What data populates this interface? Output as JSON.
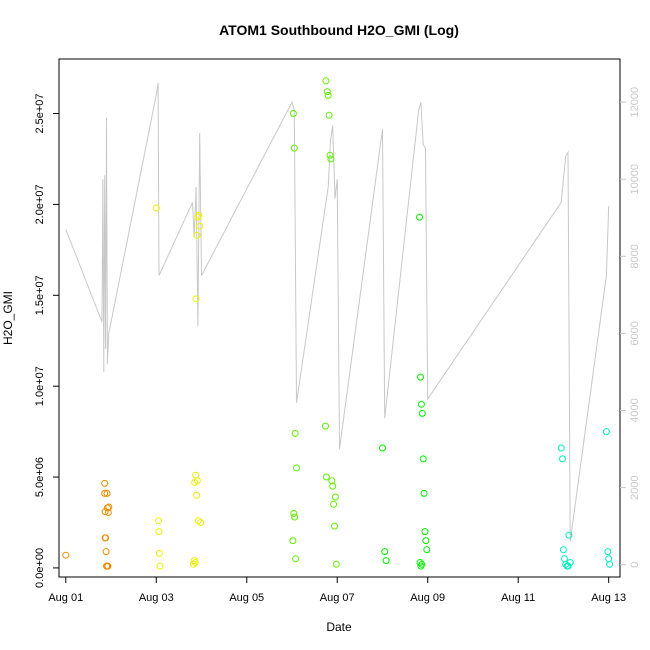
{
  "chart_data": {
    "type": "scatter",
    "title": "ATOM1 Southbound H2O_GMI (Log)",
    "xlabel": "Date",
    "ylabel": "H2O_GMI",
    "x_ticks": [
      "Aug 01",
      "Aug 03",
      "Aug 05",
      "Aug 07",
      "Aug 09",
      "Aug 11",
      "Aug 13"
    ],
    "y_ticks": [
      "0.0e+00",
      "5.0e+06",
      "1.0e+07",
      "1.5e+07",
      "2.0e+07",
      "2.5e+07"
    ],
    "y_tick_values": [
      0,
      5000000,
      10000000,
      15000000,
      20000000,
      25000000
    ],
    "y2_ticks": [
      "0",
      "2000",
      "4000",
      "6000",
      "8000",
      "10000",
      "12000"
    ],
    "y2_tick_values": [
      0,
      2000,
      4000,
      6000,
      8000,
      10000,
      12000
    ],
    "xlim_days": [
      0.85,
      13.25
    ],
    "ylim": [
      -500000,
      28000000
    ],
    "y2lim": [
      -320,
      13120
    ],
    "grid": false,
    "line_color": "#c8c8c8",
    "point_groups": [
      {
        "color": "#f08c00",
        "x": [
          1.0,
          1.86,
          1.87,
          1.88,
          1.89,
          1.9,
          1.91,
          1.93,
          1.94,
          1.95,
          1.86,
          1.87,
          1.91,
          1.92
        ],
        "y": [
          700000,
          4650000,
          1650000,
          1650000,
          900000,
          100000,
          100000,
          100000,
          3050000,
          3350000,
          4100000,
          3100000,
          4100000,
          3300000
        ]
      },
      {
        "color": "#f0f000",
        "x": [
          3.0,
          3.05,
          3.06,
          3.07,
          3.08,
          3.82,
          3.84,
          3.86,
          3.88,
          3.9,
          3.92,
          3.94,
          3.96,
          3.98,
          3.85,
          3.87,
          3.89,
          3.91,
          3.93
        ],
        "y": [
          19800000,
          2600000,
          2000000,
          800000,
          100000,
          200000,
          400000,
          300000,
          14800000,
          18300000,
          19300000,
          19400000,
          18800000,
          2500000,
          4700000,
          5100000,
          4000000,
          4800000,
          2600000
        ]
      },
      {
        "color": "#60f000",
        "x": [
          6.03,
          6.05,
          6.07,
          6.1,
          6.75,
          6.78,
          6.8,
          6.82,
          6.84,
          6.86,
          6.88,
          6.9,
          6.92,
          6.94,
          6.96,
          6.98,
          6.02,
          6.04,
          6.06,
          6.08,
          6.74,
          6.76
        ],
        "y": [
          25000000,
          23100000,
          7400000,
          5500000,
          26800000,
          26200000,
          26000000,
          24900000,
          22700000,
          22500000,
          4800000,
          4500000,
          3500000,
          2300000,
          3900000,
          200000,
          1500000,
          3000000,
          2800000,
          500000,
          7800000,
          5000000
        ]
      },
      {
        "color": "#00f000",
        "x": [
          8.0,
          8.05,
          8.08,
          8.82,
          8.84,
          8.86,
          8.88,
          8.9,
          8.92,
          8.94,
          8.96,
          8.98,
          8.83,
          8.85,
          8.87
        ],
        "y": [
          6600000,
          900000,
          400000,
          19300000,
          10500000,
          9000000,
          8500000,
          6000000,
          4100000,
          2000000,
          1500000,
          1000000,
          300000,
          100000,
          200000
        ]
      },
      {
        "color": "#00f0c0",
        "x": [
          11.95,
          11.98,
          12.0,
          12.02,
          12.05,
          12.08,
          12.1,
          12.12,
          12.15,
          12.95,
          12.98,
          13.0,
          13.02
        ],
        "y": [
          6600000,
          6000000,
          1000000,
          500000,
          200000,
          100000,
          100000,
          1800000,
          300000,
          7500000,
          900000,
          500000,
          200000
        ]
      }
    ],
    "line_y2": [
      [
        1.0,
        8700
      ],
      [
        1.8,
        6300
      ],
      [
        1.82,
        10000
      ],
      [
        1.84,
        5000
      ],
      [
        1.86,
        10100
      ],
      [
        1.88,
        5600
      ],
      [
        1.9,
        11600
      ],
      [
        1.92,
        5200
      ],
      [
        1.95,
        6000
      ],
      [
        3.0,
        12200
      ],
      [
        3.04,
        12500
      ],
      [
        3.06,
        7500
      ],
      [
        3.8,
        9400
      ],
      [
        3.84,
        8500
      ],
      [
        3.88,
        9800
      ],
      [
        3.92,
        6200
      ],
      [
        3.96,
        11200
      ],
      [
        4.0,
        7500
      ],
      [
        6.0,
        12000
      ],
      [
        6.05,
        11800
      ],
      [
        6.1,
        4200
      ],
      [
        6.8,
        9800
      ],
      [
        6.85,
        11000
      ],
      [
        6.9,
        11400
      ],
      [
        6.95,
        9500
      ],
      [
        7.0,
        10000
      ],
      [
        7.05,
        3000
      ],
      [
        8.0,
        11300
      ],
      [
        8.05,
        3800
      ],
      [
        8.8,
        11800
      ],
      [
        8.85,
        12000
      ],
      [
        8.9,
        10900
      ],
      [
        8.95,
        10800
      ],
      [
        9.0,
        4300
      ],
      [
        11.95,
        9400
      ],
      [
        12.0,
        10000
      ],
      [
        12.05,
        10600
      ],
      [
        12.1,
        10700
      ],
      [
        12.15,
        600
      ],
      [
        12.95,
        7500
      ],
      [
        13.0,
        9300
      ]
    ]
  }
}
